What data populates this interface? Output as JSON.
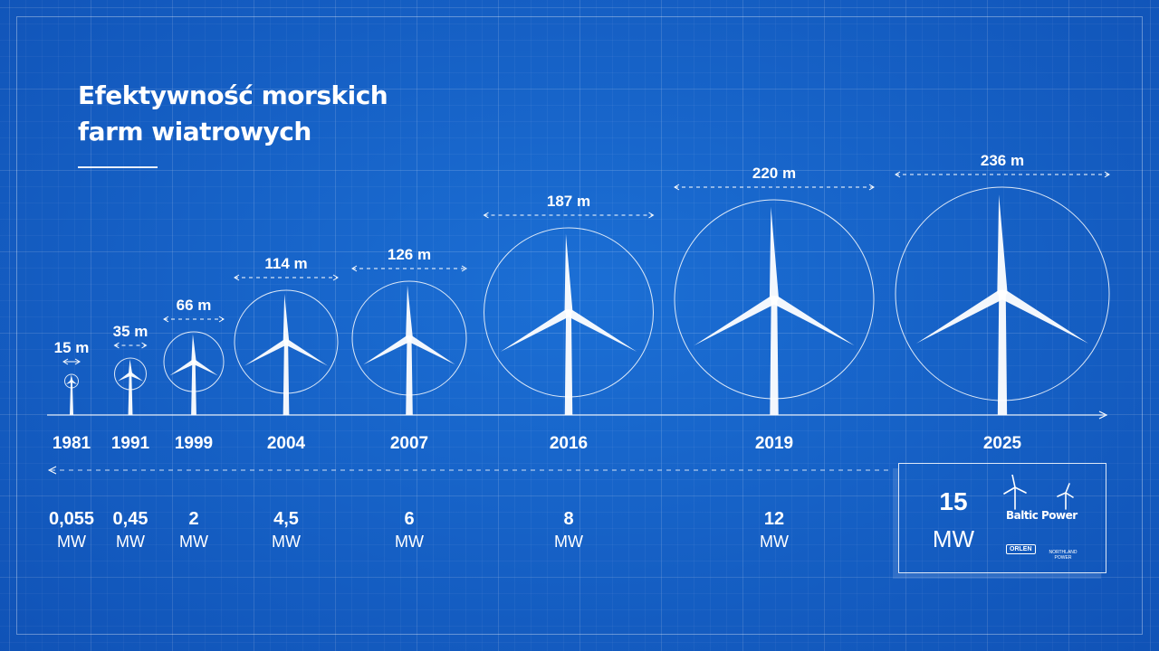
{
  "title": {
    "line1": "Efektywność morskich",
    "line2": "farm wiatrowych"
  },
  "turbines": [
    {
      "year": "1981",
      "diameter": 15,
      "diameter_label": "15 m",
      "power": "0,055",
      "unit": "MW"
    },
    {
      "year": "1991",
      "diameter": 35,
      "diameter_label": "35 m",
      "power": "0,45",
      "unit": "MW"
    },
    {
      "year": "1999",
      "diameter": 66,
      "diameter_label": "66 m",
      "power": "2",
      "unit": "MW"
    },
    {
      "year": "2004",
      "diameter": 114,
      "diameter_label": "114 m",
      "power": "4,5",
      "unit": "MW"
    },
    {
      "year": "2007",
      "diameter": 126,
      "diameter_label": "126 m",
      "power": "6",
      "unit": "MW"
    },
    {
      "year": "2016",
      "diameter": 187,
      "diameter_label": "187 m",
      "power": "8",
      "unit": "MW"
    },
    {
      "year": "2019",
      "diameter": 220,
      "diameter_label": "220 m",
      "power": "12",
      "unit": "MW"
    },
    {
      "year": "2025",
      "diameter": 236,
      "diameter_label": "236 m",
      "power": "15",
      "unit": "MW"
    }
  ],
  "highlight": {
    "power": "15",
    "unit": "MW",
    "brand": "Baltic Power",
    "partner1": "ORLEN",
    "partner2_line1": "NORTHLAND",
    "partner2_line2": "POWER"
  },
  "colors": {
    "background": "#1565c9",
    "ink": "#ffffff"
  }
}
